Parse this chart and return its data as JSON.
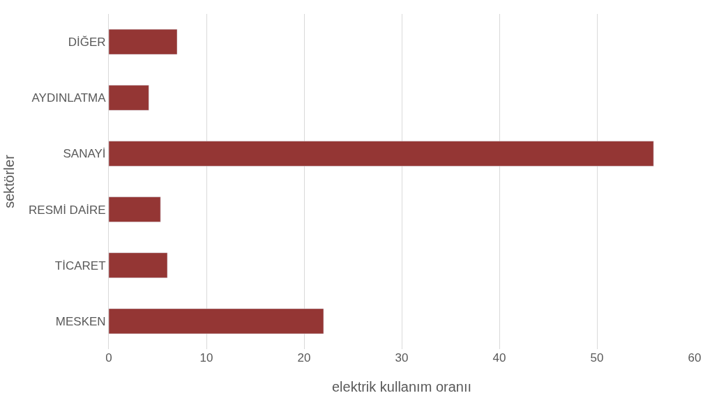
{
  "chart_data": {
    "type": "bar",
    "orientation": "horizontal",
    "xlabel": "elektrik kullanım oranıı",
    "ylabel": "sektörler",
    "categories": [
      "DİĞER",
      "AYDINLATMA",
      "SANAYİ",
      "RESMİ DAİRE",
      "TİCARET",
      "MESKEN"
    ],
    "values": [
      7.0,
      4.1,
      55.8,
      5.3,
      6.0,
      22.0
    ],
    "color": "#943634",
    "xlim": [
      0,
      60
    ],
    "xticks": [
      0,
      10,
      20,
      30,
      40,
      50,
      60
    ],
    "grid": "x"
  }
}
